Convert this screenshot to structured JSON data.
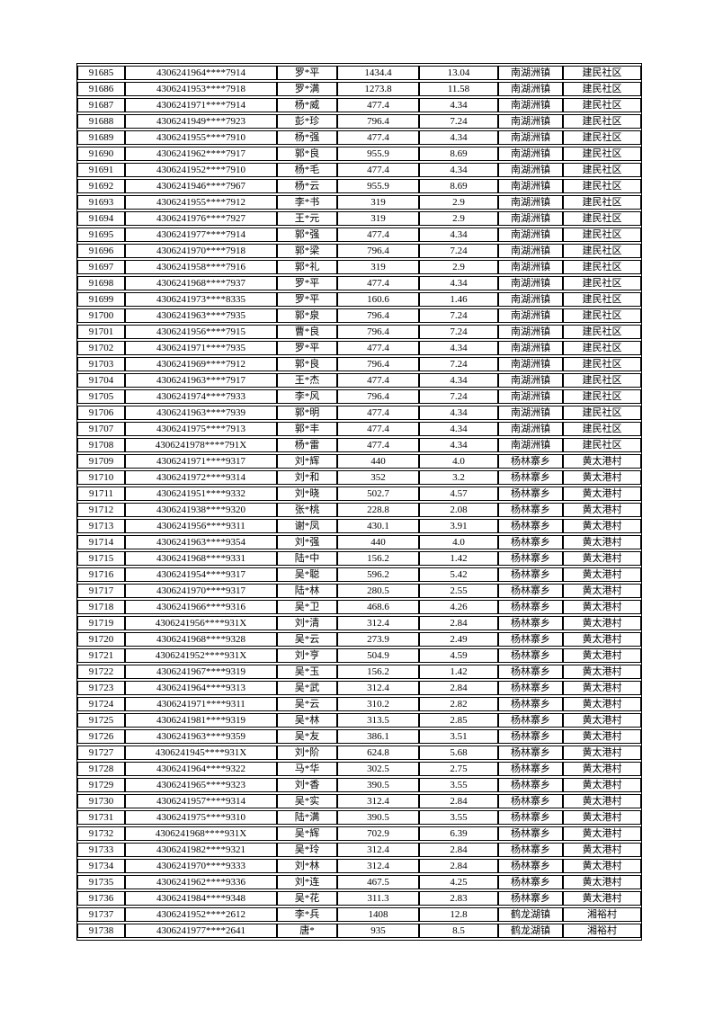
{
  "page": {
    "background_color": "#ffffff",
    "text_color": "#000000",
    "border_color": "#000000"
  },
  "table": {
    "column_names": [
      "serial-number-cell",
      "id-number-cell",
      "name-cell",
      "amount1-cell",
      "amount2-cell",
      "town-cell",
      "village-cell"
    ],
    "rows": [
      [
        "91685",
        "4306241964****7914",
        "罗*平",
        "1434.4",
        "13.04",
        "南湖洲镇",
        "建民社区"
      ],
      [
        "91686",
        "4306241953****7918",
        "罗*满",
        "1273.8",
        "11.58",
        "南湖洲镇",
        "建民社区"
      ],
      [
        "91687",
        "4306241971****7914",
        "杨*威",
        "477.4",
        "4.34",
        "南湖洲镇",
        "建民社区"
      ],
      [
        "91688",
        "4306241949****7923",
        "彭*珍",
        "796.4",
        "7.24",
        "南湖洲镇",
        "建民社区"
      ],
      [
        "91689",
        "4306241955****7910",
        "杨*强",
        "477.4",
        "4.34",
        "南湖洲镇",
        "建民社区"
      ],
      [
        "91690",
        "4306241962****7917",
        "郭*良",
        "955.9",
        "8.69",
        "南湖洲镇",
        "建民社区"
      ],
      [
        "91691",
        "4306241952****7910",
        "杨*毛",
        "477.4",
        "4.34",
        "南湖洲镇",
        "建民社区"
      ],
      [
        "91692",
        "4306241946****7967",
        "杨*云",
        "955.9",
        "8.69",
        "南湖洲镇",
        "建民社区"
      ],
      [
        "91693",
        "4306241955****7912",
        "李*书",
        "319",
        "2.9",
        "南湖洲镇",
        "建民社区"
      ],
      [
        "91694",
        "4306241976****7927",
        "王*元",
        "319",
        "2.9",
        "南湖洲镇",
        "建民社区"
      ],
      [
        "91695",
        "4306241977****7914",
        "郭*强",
        "477.4",
        "4.34",
        "南湖洲镇",
        "建民社区"
      ],
      [
        "91696",
        "4306241970****7918",
        "郭*梁",
        "796.4",
        "7.24",
        "南湖洲镇",
        "建民社区"
      ],
      [
        "91697",
        "4306241958****7916",
        "郭*礼",
        "319",
        "2.9",
        "南湖洲镇",
        "建民社区"
      ],
      [
        "91698",
        "4306241968****7937",
        "罗*平",
        "477.4",
        "4.34",
        "南湖洲镇",
        "建民社区"
      ],
      [
        "91699",
        "4306241973****8335",
        "罗*平",
        "160.6",
        "1.46",
        "南湖洲镇",
        "建民社区"
      ],
      [
        "91700",
        "4306241963****7935",
        "郭*泉",
        "796.4",
        "7.24",
        "南湖洲镇",
        "建民社区"
      ],
      [
        "91701",
        "4306241956****7915",
        "曹*良",
        "796.4",
        "7.24",
        "南湖洲镇",
        "建民社区"
      ],
      [
        "91702",
        "4306241971****7935",
        "罗*平",
        "477.4",
        "4.34",
        "南湖洲镇",
        "建民社区"
      ],
      [
        "91703",
        "4306241969****7912",
        "郭*良",
        "796.4",
        "7.24",
        "南湖洲镇",
        "建民社区"
      ],
      [
        "91704",
        "4306241963****7917",
        "王*杰",
        "477.4",
        "4.34",
        "南湖洲镇",
        "建民社区"
      ],
      [
        "91705",
        "4306241974****7933",
        "李*风",
        "796.4",
        "7.24",
        "南湖洲镇",
        "建民社区"
      ],
      [
        "91706",
        "4306241963****7939",
        "郭*明",
        "477.4",
        "4.34",
        "南湖洲镇",
        "建民社区"
      ],
      [
        "91707",
        "4306241975****7913",
        "郭*丰",
        "477.4",
        "4.34",
        "南湖洲镇",
        "建民社区"
      ],
      [
        "91708",
        "4306241978****791X",
        "杨*雷",
        "477.4",
        "4.34",
        "南湖洲镇",
        "建民社区"
      ],
      [
        "91709",
        "4306241971****9317",
        "刘*辉",
        "440",
        "4.0",
        "杨林寨乡",
        "黄太港村"
      ],
      [
        "91710",
        "4306241972****9314",
        "刘*和",
        "352",
        "3.2",
        "杨林寨乡",
        "黄太港村"
      ],
      [
        "91711",
        "4306241951****9332",
        "刘*晓",
        "502.7",
        "4.57",
        "杨林寨乡",
        "黄太港村"
      ],
      [
        "91712",
        "4306241938****9320",
        "张*桃",
        "228.8",
        "2.08",
        "杨林寨乡",
        "黄太港村"
      ],
      [
        "91713",
        "4306241956****9311",
        "谢*凤",
        "430.1",
        "3.91",
        "杨林寨乡",
        "黄太港村"
      ],
      [
        "91714",
        "4306241963****9354",
        "刘*强",
        "440",
        "4.0",
        "杨林寨乡",
        "黄太港村"
      ],
      [
        "91715",
        "4306241968****9331",
        "陆*中",
        "156.2",
        "1.42",
        "杨林寨乡",
        "黄太港村"
      ],
      [
        "91716",
        "4306241954****9317",
        "吴*聪",
        "596.2",
        "5.42",
        "杨林寨乡",
        "黄太港村"
      ],
      [
        "91717",
        "4306241970****9317",
        "陆*林",
        "280.5",
        "2.55",
        "杨林寨乡",
        "黄太港村"
      ],
      [
        "91718",
        "4306241966****9316",
        "吴*卫",
        "468.6",
        "4.26",
        "杨林寨乡",
        "黄太港村"
      ],
      [
        "91719",
        "4306241956****931X",
        "刘*清",
        "312.4",
        "2.84",
        "杨林寨乡",
        "黄太港村"
      ],
      [
        "91720",
        "4306241968****9328",
        "吴*云",
        "273.9",
        "2.49",
        "杨林寨乡",
        "黄太港村"
      ],
      [
        "91721",
        "4306241952****931X",
        "刘*亨",
        "504.9",
        "4.59",
        "杨林寨乡",
        "黄太港村"
      ],
      [
        "91722",
        "4306241967****9319",
        "吴*玉",
        "156.2",
        "1.42",
        "杨林寨乡",
        "黄太港村"
      ],
      [
        "91723",
        "4306241964****9313",
        "吴*武",
        "312.4",
        "2.84",
        "杨林寨乡",
        "黄太港村"
      ],
      [
        "91724",
        "4306241971****9311",
        "吴*云",
        "310.2",
        "2.82",
        "杨林寨乡",
        "黄太港村"
      ],
      [
        "91725",
        "4306241981****9319",
        "吴*林",
        "313.5",
        "2.85",
        "杨林寨乡",
        "黄太港村"
      ],
      [
        "91726",
        "4306241963****9359",
        "吴*友",
        "386.1",
        "3.51",
        "杨林寨乡",
        "黄太港村"
      ],
      [
        "91727",
        "4306241945****931X",
        "刘*阶",
        "624.8",
        "5.68",
        "杨林寨乡",
        "黄太港村"
      ],
      [
        "91728",
        "4306241964****9322",
        "马*华",
        "302.5",
        "2.75",
        "杨林寨乡",
        "黄太港村"
      ],
      [
        "91729",
        "4306241965****9323",
        "刘*香",
        "390.5",
        "3.55",
        "杨林寨乡",
        "黄太港村"
      ],
      [
        "91730",
        "4306241957****9314",
        "吴*实",
        "312.4",
        "2.84",
        "杨林寨乡",
        "黄太港村"
      ],
      [
        "91731",
        "4306241975****9310",
        "陆*满",
        "390.5",
        "3.55",
        "杨林寨乡",
        "黄太港村"
      ],
      [
        "91732",
        "4306241968****931X",
        "吴*辉",
        "702.9",
        "6.39",
        "杨林寨乡",
        "黄太港村"
      ],
      [
        "91733",
        "4306241982****9321",
        "吴*玲",
        "312.4",
        "2.84",
        "杨林寨乡",
        "黄太港村"
      ],
      [
        "91734",
        "4306241970****9333",
        "刘*林",
        "312.4",
        "2.84",
        "杨林寨乡",
        "黄太港村"
      ],
      [
        "91735",
        "4306241962****9336",
        "刘*连",
        "467.5",
        "4.25",
        "杨林寨乡",
        "黄太港村"
      ],
      [
        "91736",
        "4306241984****9348",
        "吴*花",
        "311.3",
        "2.83",
        "杨林寨乡",
        "黄太港村"
      ],
      [
        "91737",
        "4306241952****2612",
        "李*兵",
        "1408",
        "12.8",
        "鹤龙湖镇",
        "湘裕村"
      ],
      [
        "91738",
        "4306241977****2641",
        "唐*",
        "935",
        "8.5",
        "鹤龙湖镇",
        "湘裕村"
      ]
    ]
  }
}
